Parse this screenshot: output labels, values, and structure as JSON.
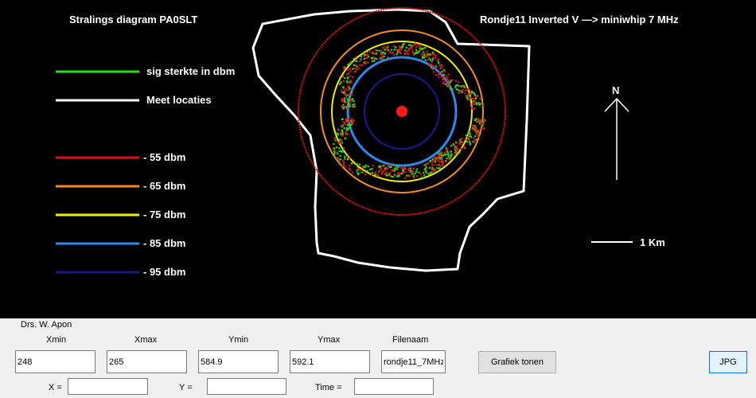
{
  "plot": {
    "title": "Stralings diagram PA0SLT",
    "subtitle": "Rondje11 Inverted V  —> miniwhip 7 MHz",
    "north_label": "N",
    "scale_label": "1 Km",
    "legend": [
      {
        "label": "sig sterkte in dbm",
        "color": "#22dd22"
      },
      {
        "label": "Meet locaties",
        "color": "#ffffff"
      },
      {
        "label": "- 55 dbm",
        "color": "#dd1111"
      },
      {
        "label": "- 65 dbm",
        "color": "#f08c28"
      },
      {
        "label": "- 75 dbm",
        "color": "#f0f000"
      },
      {
        "label": "- 85 dbm",
        "color": "#2a8aee"
      },
      {
        "label": "- 95 dbm",
        "color": "#1a1a8c"
      }
    ],
    "colors": {
      "background": "#000000",
      "center_dot": "#ff1a1a"
    }
  },
  "panel": {
    "author": "Drs. W. Apon",
    "fields": [
      {
        "label": "Xmin",
        "value": "248"
      },
      {
        "label": "Xmax",
        "value": "265"
      },
      {
        "label": "Ymin",
        "value": "584.9"
      },
      {
        "label": "Ymax",
        "value": "592.1"
      },
      {
        "label": "Filenaam",
        "value": "rondje11_7MHz"
      }
    ],
    "show_button": "Grafiek tonen",
    "jpg_button": "JPG",
    "x_label": "X =",
    "y_label": "Y =",
    "time_label": "Time  =",
    "x_value": "",
    "y_value": "",
    "time_value": ""
  }
}
